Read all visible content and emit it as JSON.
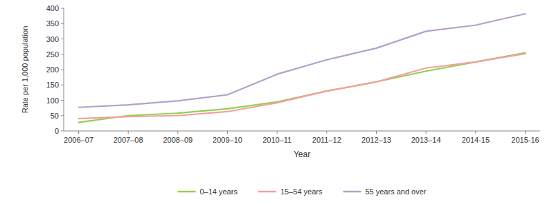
{
  "chart_data": {
    "type": "line",
    "categories": [
      "2006–07",
      "2007–08",
      "2008–09",
      "2009–10",
      "2010–11",
      "2011–12",
      "2012–13",
      "2013–14",
      "2014-15",
      "2015-16"
    ],
    "series": [
      {
        "name": "0–14 years",
        "color": "#92d050",
        "values": [
          28,
          50,
          58,
          72,
          95,
          130,
          160,
          195,
          225,
          255
        ]
      },
      {
        "name": "15–54 years",
        "color": "#f4a0a0",
        "values": [
          40,
          47,
          50,
          63,
          92,
          130,
          160,
          205,
          225,
          252
        ]
      },
      {
        "name": "55 years and over",
        "color": "#b4a0c8",
        "values": [
          77,
          85,
          98,
          118,
          185,
          232,
          270,
          325,
          345,
          382
        ]
      }
    ],
    "x_label": "Year",
    "y_label": "Rate per 1,000 population",
    "ylim": [
      0,
      400
    ],
    "yticks": [
      0,
      50,
      100,
      150,
      200,
      250,
      300,
      350,
      400
    ],
    "grid": false,
    "legend": "bottom"
  }
}
